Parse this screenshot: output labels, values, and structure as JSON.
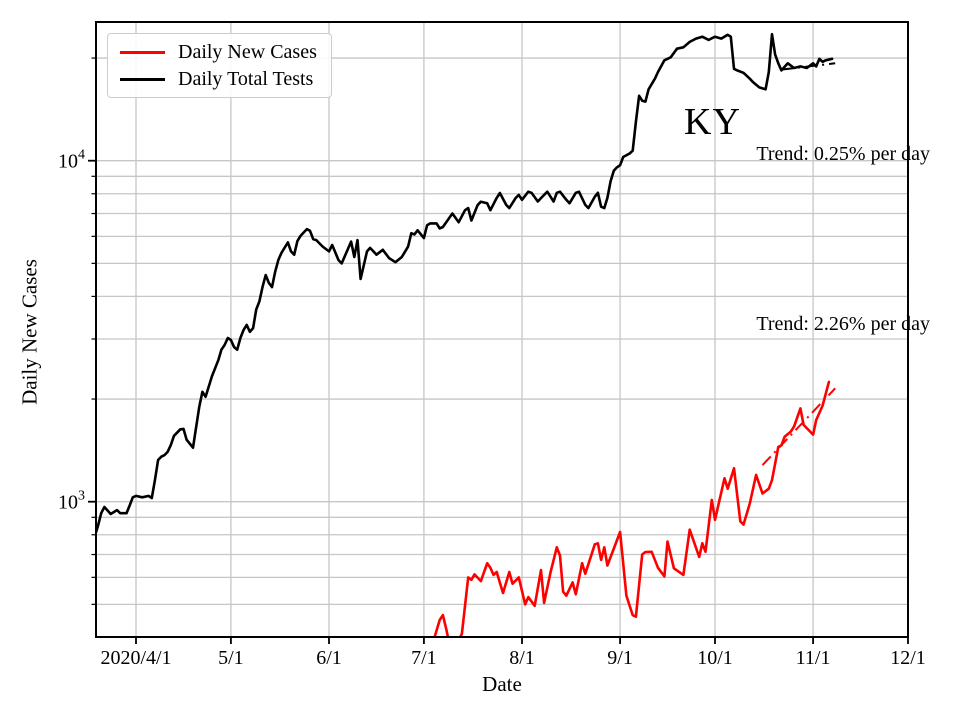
{
  "chart_data": {
    "type": "line",
    "title": "",
    "xlabel": "Date",
    "ylabel": "Daily New Cases",
    "y_scale": "log",
    "ylim": [
      400,
      25500
    ],
    "xlim": [
      "2020/3/19",
      "2020/12/1"
    ],
    "grid": true,
    "grid_color": "#c6c6c6",
    "axis_color": "#000000",
    "legend_position": "upper left",
    "legend": [
      {
        "label": "Daily New Cases",
        "color": "#ff0000"
      },
      {
        "label": "Daily Total Tests",
        "color": "#000000"
      }
    ],
    "annotations": {
      "state": "KY",
      "trend_tests": "Trend: 0.25% per day",
      "trend_cases": "Trend: 2.26% per day"
    },
    "x_ticks": [
      {
        "date": "4/1",
        "label": "2020/4/1"
      },
      {
        "date": "5/1",
        "label": "5/1"
      },
      {
        "date": "6/1",
        "label": "6/1"
      },
      {
        "date": "7/1",
        "label": "7/1"
      },
      {
        "date": "8/1",
        "label": "8/1"
      },
      {
        "date": "9/1",
        "label": "9/1"
      },
      {
        "date": "10/1",
        "label": "10/1"
      },
      {
        "date": "11/1",
        "label": "11/1"
      },
      {
        "date": "12/1",
        "label": "12/1"
      }
    ],
    "y_major_ticks": [
      {
        "value": 1000,
        "base": "10",
        "exp": "3"
      },
      {
        "value": 10000,
        "base": "10",
        "exp": "4"
      }
    ],
    "y_minor_tick_values": [
      500,
      600,
      700,
      800,
      900,
      2000,
      3000,
      4000,
      5000,
      6000,
      7000,
      8000,
      9000,
      20000
    ],
    "series": [
      {
        "name": "Daily Total Tests",
        "color": "#000000",
        "style": "solid",
        "points": [
          [
            "3/19",
            795
          ],
          [
            "3/20",
            850
          ],
          [
            "3/21",
            925
          ],
          [
            "3/22",
            965
          ],
          [
            "3/24",
            920
          ],
          [
            "3/26",
            945
          ],
          [
            "3/27",
            925
          ],
          [
            "3/29",
            925
          ],
          [
            "3/30",
            975
          ],
          [
            "3/31",
            1030
          ],
          [
            "4/1",
            1040
          ],
          [
            "4/3",
            1030
          ],
          [
            "4/5",
            1040
          ],
          [
            "4/6",
            1025
          ],
          [
            "4/7",
            1160
          ],
          [
            "4/8",
            1325
          ],
          [
            "4/9",
            1355
          ],
          [
            "4/10",
            1370
          ],
          [
            "4/11",
            1400
          ],
          [
            "4/12",
            1465
          ],
          [
            "4/13",
            1560
          ],
          [
            "4/15",
            1630
          ],
          [
            "4/16",
            1635
          ],
          [
            "4/17",
            1520
          ],
          [
            "4/19",
            1440
          ],
          [
            "4/21",
            1900
          ],
          [
            "4/22",
            2100
          ],
          [
            "4/23",
            2030
          ],
          [
            "4/25",
            2330
          ],
          [
            "4/27",
            2600
          ],
          [
            "4/28",
            2790
          ],
          [
            "4/29",
            2880
          ],
          [
            "4/30",
            3020
          ],
          [
            "5/1",
            2980
          ],
          [
            "5/2",
            2840
          ],
          [
            "5/3",
            2790
          ],
          [
            "5/4",
            3020
          ],
          [
            "5/5",
            3190
          ],
          [
            "5/6",
            3300
          ],
          [
            "5/7",
            3150
          ],
          [
            "5/8",
            3230
          ],
          [
            "5/9",
            3660
          ],
          [
            "5/10",
            3870
          ],
          [
            "5/11",
            4270
          ],
          [
            "5/12",
            4620
          ],
          [
            "5/13",
            4380
          ],
          [
            "5/14",
            4260
          ],
          [
            "5/15",
            4730
          ],
          [
            "5/16",
            5120
          ],
          [
            "5/17",
            5370
          ],
          [
            "5/18",
            5560
          ],
          [
            "5/19",
            5760
          ],
          [
            "5/20",
            5420
          ],
          [
            "5/21",
            5300
          ],
          [
            "5/22",
            5810
          ],
          [
            "5/23",
            6020
          ],
          [
            "5/25",
            6300
          ],
          [
            "5/26",
            6230
          ],
          [
            "5/27",
            5890
          ],
          [
            "5/28",
            5850
          ],
          [
            "5/30",
            5600
          ],
          [
            "6/1",
            5420
          ],
          [
            "6/2",
            5660
          ],
          [
            "6/4",
            5110
          ],
          [
            "6/5",
            5000
          ],
          [
            "6/8",
            5790
          ],
          [
            "6/9",
            5220
          ],
          [
            "6/10",
            5850
          ],
          [
            "6/11",
            4500
          ],
          [
            "6/13",
            5420
          ],
          [
            "6/14",
            5550
          ],
          [
            "6/16",
            5300
          ],
          [
            "6/18",
            5480
          ],
          [
            "6/20",
            5180
          ],
          [
            "6/22",
            5040
          ],
          [
            "6/24",
            5220
          ],
          [
            "6/26",
            5600
          ],
          [
            "6/27",
            6130
          ],
          [
            "6/28",
            6080
          ],
          [
            "6/29",
            6250
          ],
          [
            "7/1",
            5930
          ],
          [
            "7/2",
            6470
          ],
          [
            "7/3",
            6550
          ],
          [
            "7/5",
            6550
          ],
          [
            "7/6",
            6330
          ],
          [
            "7/7",
            6390
          ],
          [
            "7/9",
            6790
          ],
          [
            "7/10",
            7000
          ],
          [
            "7/12",
            6600
          ],
          [
            "7/14",
            7160
          ],
          [
            "7/15",
            7260
          ],
          [
            "7/16",
            6680
          ],
          [
            "7/18",
            7420
          ],
          [
            "7/19",
            7580
          ],
          [
            "7/21",
            7500
          ],
          [
            "7/22",
            7160
          ],
          [
            "7/24",
            7780
          ],
          [
            "7/25",
            8040
          ],
          [
            "7/27",
            7420
          ],
          [
            "7/28",
            7260
          ],
          [
            "7/30",
            7780
          ],
          [
            "7/31",
            7940
          ],
          [
            "8/1",
            7680
          ],
          [
            "8/3",
            8110
          ],
          [
            "8/4",
            8050
          ],
          [
            "8/6",
            7590
          ],
          [
            "8/8",
            7940
          ],
          [
            "8/9",
            8110
          ],
          [
            "8/11",
            7590
          ],
          [
            "8/12",
            8050
          ],
          [
            "8/13",
            8110
          ],
          [
            "8/15",
            7680
          ],
          [
            "8/16",
            7500
          ],
          [
            "8/18",
            8050
          ],
          [
            "8/19",
            8110
          ],
          [
            "8/21",
            7420
          ],
          [
            "8/22",
            7260
          ],
          [
            "8/24",
            7840
          ],
          [
            "8/25",
            8050
          ],
          [
            "8/26",
            7330
          ],
          [
            "8/27",
            7260
          ],
          [
            "8/28",
            7780
          ],
          [
            "8/29",
            8700
          ],
          [
            "8/30",
            9350
          ],
          [
            "8/31",
            9560
          ],
          [
            "9/1",
            9700
          ],
          [
            "9/2",
            10250
          ],
          [
            "9/4",
            10500
          ],
          [
            "9/5",
            10700
          ],
          [
            "9/6",
            13000
          ],
          [
            "9/7",
            15500
          ],
          [
            "9/8",
            15000
          ],
          [
            "9/9",
            14900
          ],
          [
            "9/10",
            16200
          ],
          [
            "9/12",
            17400
          ],
          [
            "9/13",
            18200
          ],
          [
            "9/15",
            19700
          ],
          [
            "9/17",
            20100
          ],
          [
            "9/19",
            21300
          ],
          [
            "9/21",
            21500
          ],
          [
            "9/23",
            22300
          ],
          [
            "9/25",
            22800
          ],
          [
            "9/27",
            23100
          ],
          [
            "9/29",
            22600
          ],
          [
            "10/1",
            23100
          ],
          [
            "10/3",
            22800
          ],
          [
            "10/5",
            23400
          ],
          [
            "10/6",
            23100
          ],
          [
            "10/7",
            18600
          ],
          [
            "10/8",
            18400
          ],
          [
            "10/10",
            18100
          ],
          [
            "10/12",
            17400
          ],
          [
            "10/13",
            17000
          ],
          [
            "10/15",
            16400
          ],
          [
            "10/17",
            16200
          ],
          [
            "10/18",
            18200
          ],
          [
            "10/19",
            23500
          ],
          [
            "10/20",
            20500
          ],
          [
            "10/21",
            19300
          ],
          [
            "10/22",
            18400
          ],
          [
            "10/24",
            19300
          ],
          [
            "10/26",
            18700
          ],
          [
            "10/28",
            18900
          ],
          [
            "10/30",
            18700
          ],
          [
            "11/1",
            19300
          ],
          [
            "11/2",
            18900
          ],
          [
            "11/3",
            19900
          ],
          [
            "11/4",
            19500
          ],
          [
            "11/5",
            19700
          ],
          [
            "11/7",
            19900
          ]
        ]
      },
      {
        "name": "Daily New Cases",
        "color": "#ff0000",
        "style": "solid",
        "points": [
          [
            "7/4",
            390
          ],
          [
            "7/6",
            450
          ],
          [
            "7/7",
            465
          ],
          [
            "7/8",
            425
          ],
          [
            "7/9",
            385
          ],
          [
            "7/12",
            392
          ],
          [
            "7/13",
            410
          ],
          [
            "7/15",
            600
          ],
          [
            "7/16",
            590
          ],
          [
            "7/17",
            612
          ],
          [
            "7/19",
            585
          ],
          [
            "7/21",
            660
          ],
          [
            "7/22",
            640
          ],
          [
            "7/23",
            610
          ],
          [
            "7/24",
            622
          ],
          [
            "7/26",
            540
          ],
          [
            "7/28",
            622
          ],
          [
            "7/29",
            575
          ],
          [
            "7/31",
            600
          ],
          [
            "8/2",
            500
          ],
          [
            "8/3",
            525
          ],
          [
            "8/5",
            495
          ],
          [
            "8/7",
            630
          ],
          [
            "8/8",
            505
          ],
          [
            "8/10",
            620
          ],
          [
            "8/12",
            735
          ],
          [
            "8/13",
            695
          ],
          [
            "8/14",
            545
          ],
          [
            "8/15",
            530
          ],
          [
            "8/17",
            580
          ],
          [
            "8/18",
            535
          ],
          [
            "8/20",
            660
          ],
          [
            "8/21",
            615
          ],
          [
            "8/24",
            750
          ],
          [
            "8/25",
            755
          ],
          [
            "8/26",
            675
          ],
          [
            "8/27",
            735
          ],
          [
            "8/28",
            650
          ],
          [
            "9/1",
            815
          ],
          [
            "9/3",
            530
          ],
          [
            "9/5",
            465
          ],
          [
            "9/6",
            460
          ],
          [
            "9/8",
            700
          ],
          [
            "9/9",
            712
          ],
          [
            "9/11",
            713
          ],
          [
            "9/13",
            640
          ],
          [
            "9/15",
            604
          ],
          [
            "9/16",
            764
          ],
          [
            "9/18",
            638
          ],
          [
            "9/21",
            610
          ],
          [
            "9/23",
            828
          ],
          [
            "9/26",
            689
          ],
          [
            "9/27",
            755
          ],
          [
            "9/28",
            713
          ],
          [
            "9/30",
            1012
          ],
          [
            "10/1",
            885
          ],
          [
            "10/4",
            1171
          ],
          [
            "10/5",
            1092
          ],
          [
            "10/7",
            1254
          ],
          [
            "10/9",
            876
          ],
          [
            "10/10",
            857
          ],
          [
            "10/12",
            988
          ],
          [
            "10/14",
            1198
          ],
          [
            "10/16",
            1057
          ],
          [
            "10/18",
            1092
          ],
          [
            "10/19",
            1157
          ],
          [
            "10/21",
            1448
          ],
          [
            "10/22",
            1463
          ],
          [
            "10/23",
            1550
          ],
          [
            "10/25",
            1606
          ],
          [
            "10/26",
            1663
          ],
          [
            "10/28",
            1878
          ],
          [
            "10/29",
            1680
          ],
          [
            "11/1",
            1573
          ],
          [
            "11/2",
            1736
          ],
          [
            "11/4",
            1914
          ],
          [
            "11/6",
            2245
          ]
        ]
      },
      {
        "name": "Tests trend 0.25% per day",
        "color": "#000000",
        "style": "dashdot",
        "points": [
          [
            "10/22",
            18500
          ],
          [
            "11/8",
            19300
          ]
        ]
      },
      {
        "name": "Cases trend 2.26% per day",
        "color": "#ff0000",
        "style": "dashdot",
        "points": [
          [
            "10/16",
            1280
          ],
          [
            "11/8",
            2150
          ]
        ]
      }
    ]
  }
}
